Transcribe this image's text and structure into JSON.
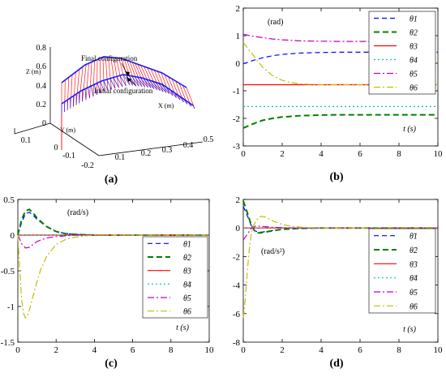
{
  "panels": [
    {
      "id": "a",
      "label": "(a)",
      "type": "3d-surface",
      "zlabel": "Z (m)",
      "ylabel": "Y (m)",
      "xlabel": "X (m)",
      "z_ticks": [
        "0",
        "0.2",
        "0.4",
        "0.6",
        "0.8"
      ],
      "y_ticks": [
        "0.1",
        "0",
        "-0.1",
        "-0.2"
      ],
      "x_ticks": [
        "0.1",
        "0.2",
        "0.3",
        "0.4",
        "0.5"
      ],
      "annotations": [
        "Final configuration",
        "Initial configuration"
      ],
      "colors": {
        "final": "#ff1a1a",
        "initial": "#1a1aff"
      }
    }
  ],
  "chart_data": [
    {
      "id": "b",
      "label": "(b)",
      "type": "line",
      "unit_label": "(rad)",
      "xlabel": "t (s)",
      "xlim": [
        0,
        10
      ],
      "ylim": [
        -3,
        2
      ],
      "xticks": [
        0,
        2,
        4,
        6,
        8,
        10
      ],
      "yticks": [
        -3,
        -2,
        -1,
        0,
        1,
        2
      ],
      "legend_position": "top-right",
      "grid": false,
      "series": [
        {
          "name": "θ1",
          "color": "#0000ff",
          "dash": "6,4",
          "x": [
            0,
            0.5,
            1,
            1.5,
            2,
            3,
            4,
            5,
            6,
            8,
            10
          ],
          "values": [
            -0.02,
            0.1,
            0.2,
            0.27,
            0.32,
            0.37,
            0.39,
            0.4,
            0.4,
            0.4,
            0.4
          ]
        },
        {
          "name": "θ2",
          "color": "#008000",
          "dash": "7,4",
          "x": [
            0,
            0.5,
            1,
            1.5,
            2,
            3,
            4,
            5,
            6,
            8,
            10
          ],
          "values": [
            -2.35,
            -2.2,
            -2.07,
            -2.0,
            -1.95,
            -1.9,
            -1.88,
            -1.87,
            -1.87,
            -1.87,
            -1.87
          ]
        },
        {
          "name": "θ3",
          "color": "#ff0000",
          "dash": "",
          "x": [
            0,
            10
          ],
          "values": [
            -0.78,
            -0.78
          ]
        },
        {
          "name": "θ4",
          "color": "#00c0c0",
          "dash": "2,3",
          "x": [
            0,
            10
          ],
          "values": [
            -1.57,
            -1.57
          ]
        },
        {
          "name": "θ5",
          "color": "#c000c0",
          "dash": "8,3,2,3",
          "x": [
            0,
            0.5,
            1,
            1.5,
            2,
            3,
            4,
            5,
            6,
            8,
            10
          ],
          "values": [
            1.05,
            0.98,
            0.93,
            0.88,
            0.85,
            0.81,
            0.8,
            0.79,
            0.79,
            0.79,
            0.79
          ]
        },
        {
          "name": "θ6",
          "color": "#c0c000",
          "dash": "8,3,2,3",
          "x": [
            0,
            0.5,
            1,
            1.5,
            2,
            2.5,
            3,
            3.5,
            4,
            5,
            6,
            8,
            10
          ],
          "values": [
            0.75,
            0.3,
            -0.15,
            -0.45,
            -0.62,
            -0.71,
            -0.75,
            -0.77,
            -0.78,
            -0.78,
            -0.78,
            -0.78,
            -0.78
          ]
        }
      ]
    },
    {
      "id": "c",
      "label": "(c)",
      "type": "line",
      "unit_label": "(rad/s)",
      "xlabel": "t (s)",
      "xlim": [
        0,
        10
      ],
      "ylim": [
        -1.5,
        0.5
      ],
      "xticks": [
        0,
        2,
        4,
        6,
        8,
        10
      ],
      "yticks": [
        -1.5,
        -1,
        -0.5,
        0,
        0.5
      ],
      "legend_position": "bottom-right",
      "grid": false,
      "series": [
        {
          "name": "θ̇1",
          "color": "#0000ff",
          "dash": "6,4",
          "x": [
            0,
            0.2,
            0.4,
            0.6,
            0.8,
            1,
            1.5,
            2,
            2.5,
            3,
            4,
            6,
            10
          ],
          "values": [
            0,
            0.18,
            0.3,
            0.32,
            0.28,
            0.22,
            0.12,
            0.05,
            0.02,
            0.01,
            0,
            0,
            0
          ]
        },
        {
          "name": "θ̇2",
          "color": "#008000",
          "dash": "7,4",
          "x": [
            0,
            0.2,
            0.4,
            0.6,
            0.8,
            1,
            1.5,
            2,
            2.5,
            3,
            4,
            6,
            10
          ],
          "values": [
            0,
            0.22,
            0.34,
            0.36,
            0.31,
            0.24,
            0.12,
            0.05,
            0.02,
            0.01,
            0,
            0,
            0
          ]
        },
        {
          "name": "θ̇3",
          "color": "#ff0000",
          "dash": "",
          "x": [
            0,
            10
          ],
          "values": [
            0,
            0
          ]
        },
        {
          "name": "θ̇4",
          "color": "#00c0c0",
          "dash": "2,3",
          "x": [
            0,
            10
          ],
          "values": [
            0,
            0
          ]
        },
        {
          "name": "θ̇5",
          "color": "#c000c0",
          "dash": "8,3,2,3",
          "x": [
            0,
            0.2,
            0.4,
            0.6,
            0.8,
            1,
            1.5,
            2,
            2.5,
            3,
            4,
            6,
            10
          ],
          "values": [
            0,
            -0.12,
            -0.18,
            -0.17,
            -0.13,
            -0.09,
            -0.04,
            -0.02,
            -0.01,
            0,
            0,
            0,
            0
          ]
        },
        {
          "name": "θ̇6",
          "color": "#c0c000",
          "dash": "8,3,2,3",
          "x": [
            0,
            0.1,
            0.2,
            0.3,
            0.4,
            0.5,
            0.6,
            0.8,
            1,
            1.2,
            1.5,
            2,
            2.5,
            3,
            3.5,
            4,
            5,
            6,
            10
          ],
          "values": [
            0,
            -0.5,
            -0.9,
            -1.1,
            -1.16,
            -1.13,
            -1.05,
            -0.85,
            -0.65,
            -0.48,
            -0.3,
            -0.13,
            -0.06,
            -0.03,
            -0.01,
            0,
            0,
            0,
            0
          ]
        }
      ]
    },
    {
      "id": "d",
      "label": "(d)",
      "type": "line",
      "unit_label": "(rad/s²)",
      "xlabel": "t (s)",
      "xlim": [
        0,
        10
      ],
      "ylim": [
        -8,
        2
      ],
      "xticks": [
        0,
        2,
        4,
        6,
        8,
        10
      ],
      "yticks": [
        -8,
        -6,
        -4,
        -2,
        0,
        2
      ],
      "legend_position": "top-right",
      "grid": false,
      "series": [
        {
          "name": "θ̈1",
          "color": "#0000ff",
          "dash": "6,4",
          "x": [
            0,
            0.2,
            0.4,
            0.6,
            0.8,
            1,
            1.5,
            2,
            3,
            4,
            10
          ],
          "values": [
            1.5,
            0.9,
            0.2,
            -0.2,
            -0.3,
            -0.28,
            -0.18,
            -0.08,
            -0.02,
            0,
            0
          ]
        },
        {
          "name": "θ̈2",
          "color": "#008000",
          "dash": "7,4",
          "x": [
            0,
            0.2,
            0.4,
            0.6,
            0.8,
            1,
            1.5,
            2,
            3,
            4,
            10
          ],
          "values": [
            1.9,
            1.1,
            0.25,
            -0.25,
            -0.35,
            -0.32,
            -0.2,
            -0.09,
            -0.02,
            0,
            0
          ]
        },
        {
          "name": "θ̈3",
          "color": "#ff0000",
          "dash": "",
          "x": [
            0,
            10
          ],
          "values": [
            0,
            0
          ]
        },
        {
          "name": "θ̈4",
          "color": "#00c0c0",
          "dash": "2,3",
          "x": [
            0,
            10
          ],
          "values": [
            0,
            0
          ]
        },
        {
          "name": "θ̈5",
          "color": "#c000c0",
          "dash": "8,3,2,3",
          "x": [
            0,
            0.2,
            0.4,
            0.6,
            0.8,
            1,
            1.5,
            2,
            3,
            10
          ],
          "values": [
            -0.85,
            -0.45,
            -0.05,
            0.12,
            0.13,
            0.1,
            0.05,
            0.02,
            0,
            0
          ]
        },
        {
          "name": "θ̈6",
          "color": "#c0c000",
          "dash": "8,3,2,3",
          "x": [
            0,
            0.1,
            0.2,
            0.3,
            0.4,
            0.5,
            0.7,
            0.9,
            1.1,
            1.3,
            1.6,
            2,
            2.5,
            3,
            3.5,
            4,
            5,
            10
          ],
          "values": [
            -6.3,
            -5.0,
            -3.2,
            -1.6,
            -0.5,
            0.1,
            0.6,
            0.82,
            0.78,
            0.65,
            0.45,
            0.25,
            0.12,
            0.05,
            0.02,
            0,
            0,
            0
          ]
        }
      ]
    }
  ]
}
